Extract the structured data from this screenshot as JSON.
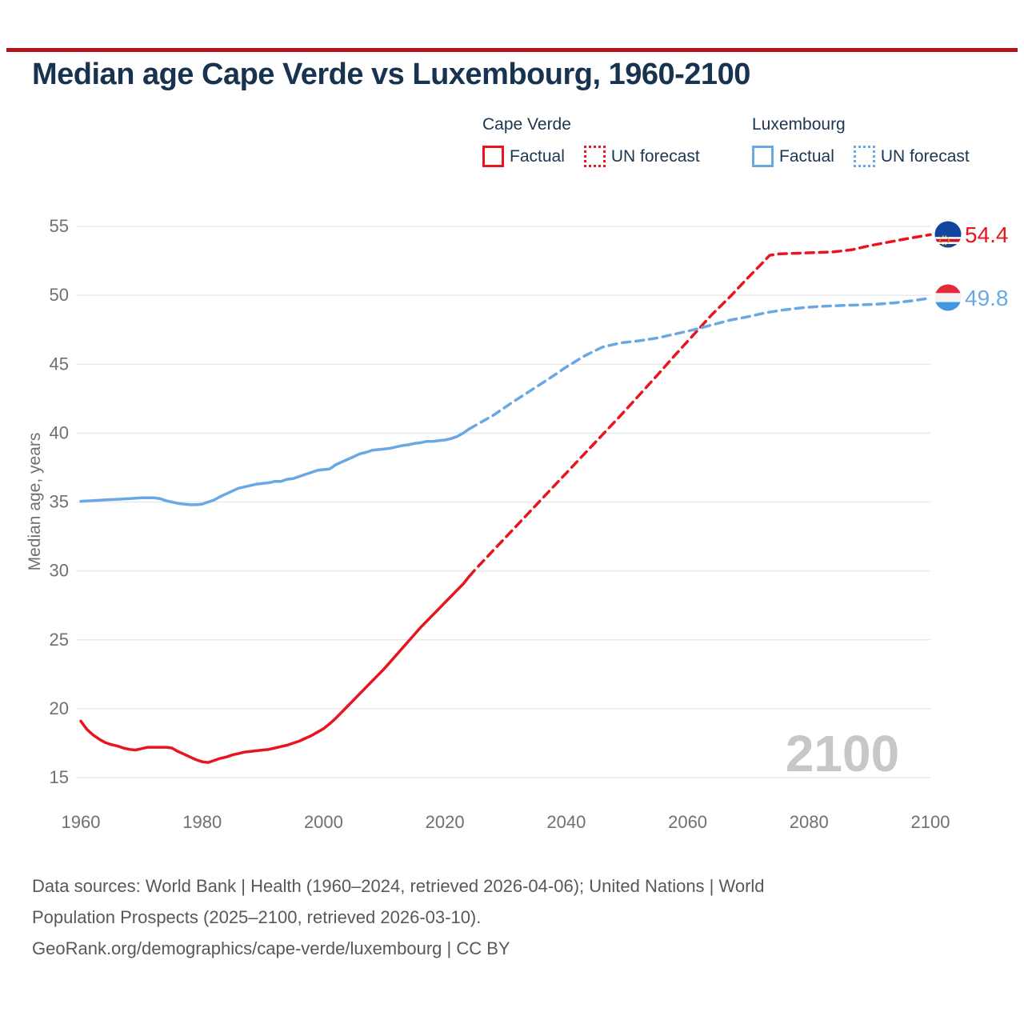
{
  "title": "Median age Cape Verde vs Luxembourg, 1960-2100",
  "accent_bar_color": "#b5121b",
  "legend": {
    "groups": [
      {
        "country": "Cape Verde",
        "items": [
          {
            "label": "Factual",
            "style": "solid",
            "color": "#e8141e"
          },
          {
            "label": "UN forecast",
            "style": "dotted",
            "color": "#e8141e"
          }
        ]
      },
      {
        "country": "Luxembourg",
        "items": [
          {
            "label": "Factual",
            "style": "solid",
            "color": "#6aa8e4"
          },
          {
            "label": "UN forecast",
            "style": "dotted",
            "color": "#6aa8e4"
          }
        ]
      }
    ]
  },
  "end_labels": [
    {
      "country": "Cape Verde",
      "value": "54.4",
      "color": "#e8141e",
      "flag": "cape-verde-flag"
    },
    {
      "country": "Luxembourg",
      "value": "49.8",
      "color": "#6aa8e4",
      "flag": "luxembourg-flag"
    }
  ],
  "footer": {
    "lines": [
      "Data sources: World Bank | Health (1960–2024, retrieved 2026-04-06); United Nations | World",
      "Population Prospects (2025–2100, retrieved 2026-03-10).",
      "GeoRank.org/demographics/cape-verde/luxembourg | CC BY"
    ]
  },
  "chart_data": {
    "type": "line",
    "title": "Median age Cape Verde vs Luxembourg, 1960-2100",
    "xlabel": "",
    "ylabel": "Median age, years",
    "xlim": [
      1960,
      2100
    ],
    "ylim": [
      15,
      55
    ],
    "x_ticks": [
      1960,
      1980,
      2000,
      2020,
      2040,
      2060,
      2080,
      2100
    ],
    "y_ticks": [
      15,
      20,
      25,
      30,
      35,
      40,
      45,
      50,
      55
    ],
    "grid": "horizontal-only",
    "legend_position": "top-right",
    "watermark": "2100",
    "series": [
      {
        "id": "cape-verde-factual",
        "name": "Cape Verde — Factual",
        "color": "#e8141e",
        "dash": "solid",
        "points": [
          [
            1960,
            19.1
          ],
          [
            1961,
            18.5
          ],
          [
            1962,
            18.1
          ],
          [
            1963,
            17.8
          ],
          [
            1964,
            17.55
          ],
          [
            1965,
            17.4
          ],
          [
            1966,
            17.3
          ],
          [
            1967,
            17.15
          ],
          [
            1968,
            17.05
          ],
          [
            1969,
            17.0
          ],
          [
            1970,
            17.1
          ],
          [
            1971,
            17.2
          ],
          [
            1972,
            17.2
          ],
          [
            1973,
            17.2
          ],
          [
            1974,
            17.2
          ],
          [
            1975,
            17.15
          ],
          [
            1976,
            16.9
          ],
          [
            1977,
            16.7
          ],
          [
            1978,
            16.5
          ],
          [
            1979,
            16.3
          ],
          [
            1980,
            16.15
          ],
          [
            1981,
            16.1
          ],
          [
            1982,
            16.25
          ],
          [
            1983,
            16.4
          ],
          [
            1984,
            16.5
          ],
          [
            1985,
            16.65
          ],
          [
            1986,
            16.75
          ],
          [
            1987,
            16.85
          ],
          [
            1988,
            16.9
          ],
          [
            1989,
            16.95
          ],
          [
            1990,
            17.0
          ],
          [
            1991,
            17.05
          ],
          [
            1992,
            17.15
          ],
          [
            1993,
            17.25
          ],
          [
            1994,
            17.35
          ],
          [
            1995,
            17.5
          ],
          [
            1996,
            17.65
          ],
          [
            1997,
            17.85
          ],
          [
            1998,
            18.05
          ],
          [
            1999,
            18.3
          ],
          [
            2000,
            18.55
          ],
          [
            2001,
            18.9
          ],
          [
            2002,
            19.3
          ],
          [
            2003,
            19.75
          ],
          [
            2004,
            20.2
          ],
          [
            2005,
            20.65
          ],
          [
            2006,
            21.1
          ],
          [
            2007,
            21.55
          ],
          [
            2008,
            22.0
          ],
          [
            2009,
            22.45
          ],
          [
            2010,
            22.9
          ],
          [
            2011,
            23.4
          ],
          [
            2012,
            23.9
          ],
          [
            2013,
            24.4
          ],
          [
            2014,
            24.9
          ],
          [
            2015,
            25.4
          ],
          [
            2016,
            25.9
          ],
          [
            2017,
            26.35
          ],
          [
            2018,
            26.8
          ],
          [
            2019,
            27.25
          ],
          [
            2020,
            27.7
          ],
          [
            2021,
            28.15
          ],
          [
            2022,
            28.6
          ],
          [
            2023,
            29.05
          ],
          [
            2024,
            29.6
          ]
        ]
      },
      {
        "id": "cape-verde-forecast",
        "name": "Cape Verde — UN forecast",
        "color": "#e8141e",
        "dash": "dashed",
        "points": [
          [
            2024,
            29.6
          ],
          [
            2025,
            30.1
          ],
          [
            2028,
            31.5
          ],
          [
            2031,
            32.9
          ],
          [
            2034,
            34.3
          ],
          [
            2037,
            35.7
          ],
          [
            2040,
            37.1
          ],
          [
            2043,
            38.5
          ],
          [
            2046,
            39.9
          ],
          [
            2049,
            41.3
          ],
          [
            2052,
            42.75
          ],
          [
            2055,
            44.2
          ],
          [
            2058,
            45.7
          ],
          [
            2061,
            47.15
          ],
          [
            2064,
            48.6
          ],
          [
            2067,
            49.9
          ],
          [
            2070,
            51.3
          ],
          [
            2072,
            52.2
          ],
          [
            2073.5,
            52.9
          ],
          [
            2075,
            53.0
          ],
          [
            2078,
            53.05
          ],
          [
            2081,
            53.1
          ],
          [
            2084,
            53.15
          ],
          [
            2087,
            53.3
          ],
          [
            2090,
            53.6
          ],
          [
            2093,
            53.85
          ],
          [
            2096,
            54.1
          ],
          [
            2098,
            54.25
          ],
          [
            2100,
            54.4
          ]
        ]
      },
      {
        "id": "luxembourg-factual",
        "name": "Luxembourg — Factual",
        "color": "#6aa8e4",
        "dash": "solid",
        "points": [
          [
            1960,
            35.05
          ],
          [
            1962,
            35.1
          ],
          [
            1964,
            35.15
          ],
          [
            1966,
            35.2
          ],
          [
            1968,
            35.25
          ],
          [
            1970,
            35.3
          ],
          [
            1972,
            35.3
          ],
          [
            1973,
            35.25
          ],
          [
            1974,
            35.1
          ],
          [
            1975,
            35.0
          ],
          [
            1976,
            34.9
          ],
          [
            1977,
            34.85
          ],
          [
            1978,
            34.8
          ],
          [
            1979,
            34.8
          ],
          [
            1980,
            34.85
          ],
          [
            1981,
            35.0
          ],
          [
            1982,
            35.15
          ],
          [
            1983,
            35.4
          ],
          [
            1984,
            35.6
          ],
          [
            1985,
            35.8
          ],
          [
            1986,
            36.0
          ],
          [
            1987,
            36.1
          ],
          [
            1988,
            36.2
          ],
          [
            1989,
            36.3
          ],
          [
            1990,
            36.35
          ],
          [
            1991,
            36.4
          ],
          [
            1992,
            36.5
          ],
          [
            1993,
            36.5
          ],
          [
            1994,
            36.65
          ],
          [
            1995,
            36.7
          ],
          [
            1996,
            36.85
          ],
          [
            1997,
            37.0
          ],
          [
            1998,
            37.15
          ],
          [
            1999,
            37.3
          ],
          [
            2000,
            37.35
          ],
          [
            2001,
            37.4
          ],
          [
            2002,
            37.7
          ],
          [
            2003,
            37.9
          ],
          [
            2004,
            38.1
          ],
          [
            2005,
            38.3
          ],
          [
            2006,
            38.5
          ],
          [
            2007,
            38.6
          ],
          [
            2008,
            38.75
          ],
          [
            2009,
            38.8
          ],
          [
            2010,
            38.85
          ],
          [
            2011,
            38.9
          ],
          [
            2012,
            39.0
          ],
          [
            2013,
            39.1
          ],
          [
            2014,
            39.15
          ],
          [
            2015,
            39.25
          ],
          [
            2016,
            39.3
          ],
          [
            2017,
            39.4
          ],
          [
            2018,
            39.4
          ],
          [
            2019,
            39.45
          ],
          [
            2020,
            39.5
          ],
          [
            2021,
            39.6
          ],
          [
            2022,
            39.75
          ],
          [
            2023,
            40.0
          ],
          [
            2024,
            40.3
          ]
        ]
      },
      {
        "id": "luxembourg-forecast",
        "name": "Luxembourg — UN forecast",
        "color": "#6aa8e4",
        "dash": "dashed",
        "points": [
          [
            2024,
            40.3
          ],
          [
            2025,
            40.55
          ],
          [
            2028,
            41.3
          ],
          [
            2031,
            42.2
          ],
          [
            2034,
            43.05
          ],
          [
            2037,
            43.9
          ],
          [
            2040,
            44.8
          ],
          [
            2043,
            45.6
          ],
          [
            2046,
            46.25
          ],
          [
            2049,
            46.55
          ],
          [
            2052,
            46.7
          ],
          [
            2055,
            46.9
          ],
          [
            2058,
            47.2
          ],
          [
            2061,
            47.5
          ],
          [
            2064,
            47.85
          ],
          [
            2067,
            48.2
          ],
          [
            2070,
            48.45
          ],
          [
            2073,
            48.75
          ],
          [
            2076,
            48.95
          ],
          [
            2079,
            49.1
          ],
          [
            2082,
            49.2
          ],
          [
            2085,
            49.25
          ],
          [
            2088,
            49.3
          ],
          [
            2091,
            49.35
          ],
          [
            2094,
            49.45
          ],
          [
            2097,
            49.6
          ],
          [
            2100,
            49.8
          ]
        ]
      }
    ]
  }
}
